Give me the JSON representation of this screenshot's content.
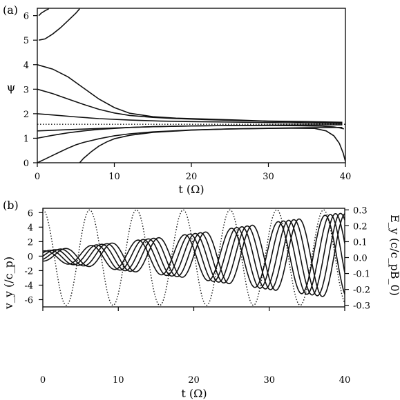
{
  "panel_a_label": "(a)",
  "panel_b_label": "(b)",
  "chart_data": [
    {
      "type": "line",
      "panel": "a",
      "ylabel": "ψ",
      "xlabel": "t (Ω)",
      "xlim": [
        0,
        40
      ],
      "ylim": [
        0,
        6.3
      ],
      "x_ticks": [
        0,
        10,
        20,
        30,
        40
      ],
      "y_ticks": [
        0,
        1,
        2,
        3,
        4,
        5,
        6
      ],
      "dotted_reference": 1.571,
      "series": [
        {
          "x": [
            0.2,
            1,
            2,
            3,
            4,
            5,
            5.5
          ],
          "values": [
            5.0,
            5.05,
            5.25,
            5.5,
            5.8,
            6.1,
            6.28
          ]
        },
        {
          "x": [
            0.2,
            0.5,
            1,
            1.5
          ],
          "values": [
            6.0,
            6.1,
            6.2,
            6.28
          ]
        },
        {
          "x": [
            0,
            2,
            4,
            6,
            8,
            10,
            12,
            15,
            18,
            22,
            26,
            30,
            35,
            39.6
          ],
          "values": [
            4.0,
            3.82,
            3.5,
            3.05,
            2.6,
            2.25,
            2.02,
            1.88,
            1.82,
            1.78,
            1.74,
            1.7,
            1.68,
            1.65
          ]
        },
        {
          "x": [
            0,
            2,
            4,
            6,
            8,
            10,
            12,
            15,
            18,
            22,
            26,
            30,
            35,
            39.6
          ],
          "values": [
            3.0,
            2.82,
            2.6,
            2.38,
            2.18,
            2.03,
            1.93,
            1.85,
            1.8,
            1.76,
            1.72,
            1.69,
            1.66,
            1.63
          ]
        },
        {
          "x": [
            0,
            2,
            5,
            8,
            12,
            16,
            20,
            25,
            30,
            35,
            39.6
          ],
          "values": [
            2.0,
            1.95,
            1.87,
            1.8,
            1.74,
            1.7,
            1.68,
            1.66,
            1.64,
            1.62,
            1.6
          ]
        },
        {
          "x": [
            0,
            5,
            10,
            15,
            20,
            25,
            30,
            35,
            39.6
          ],
          "values": [
            1.3,
            1.36,
            1.42,
            1.47,
            1.5,
            1.52,
            1.53,
            1.54,
            1.55
          ]
        },
        {
          "x": [
            0,
            2,
            4,
            6,
            8,
            10,
            12,
            15,
            18,
            22,
            26,
            30,
            34,
            37,
            38.5,
            39.3,
            39.8
          ],
          "values": [
            1.0,
            1.12,
            1.22,
            1.3,
            1.36,
            1.4,
            1.44,
            1.47,
            1.49,
            1.51,
            1.52,
            1.52,
            1.51,
            1.49,
            1.46,
            1.42,
            1.38
          ]
        },
        {
          "x": [
            0,
            1,
            2,
            3,
            4,
            5,
            6,
            8,
            10,
            12,
            15,
            20,
            25,
            30,
            33,
            36,
            37.5,
            38.5,
            39.2,
            39.7,
            40
          ],
          "values": [
            0.0,
            0.15,
            0.3,
            0.45,
            0.6,
            0.73,
            0.83,
            0.98,
            1.1,
            1.18,
            1.26,
            1.34,
            1.38,
            1.4,
            1.41,
            1.4,
            1.3,
            1.1,
            0.8,
            0.4,
            0.05
          ]
        },
        {
          "x": [
            5.5,
            6,
            7,
            8,
            9,
            10,
            12,
            15,
            20,
            25,
            30,
            35,
            39.6
          ],
          "values": [
            0.0,
            0.18,
            0.45,
            0.68,
            0.85,
            0.98,
            1.12,
            1.24,
            1.33,
            1.38,
            1.41,
            1.43,
            1.44
          ]
        }
      ]
    },
    {
      "type": "line",
      "panel": "b",
      "ylabel": "v_y (/c_p)",
      "y2label": "E_y (c/c_pB_0)",
      "xlabel": "t (Ω)",
      "xlim": [
        0,
        40
      ],
      "ylim": [
        -7,
        6.6
      ],
      "y2lim": [
        -0.31,
        0.31
      ],
      "x_ticks": [
        0,
        10,
        20,
        30,
        40
      ],
      "y_ticks": [
        -6,
        -4,
        -2,
        0,
        2,
        4,
        6
      ],
      "y2_ticks": [
        -0.3,
        -0.2,
        -0.1,
        0.0,
        0.1,
        0.2,
        0.3
      ],
      "y2_tick_labels": [
        "-0.3",
        "-0.2",
        "-0.1",
        "0.0",
        "0.1",
        "0.2",
        "0.3"
      ],
      "wave_period": 6.2,
      "e_field": {
        "amplitude": 0.3,
        "phase_deg": 90
      },
      "velocity_amplitude": {
        "t": [
          0,
          5,
          10,
          20,
          30,
          36,
          39
        ],
        "values": [
          0.7,
          1.3,
          1.9,
          3.1,
          4.6,
          5.4,
          5.9
        ]
      },
      "velocity_series_phases_deg": [
        -80,
        -40,
        0,
        40,
        80
      ]
    }
  ]
}
